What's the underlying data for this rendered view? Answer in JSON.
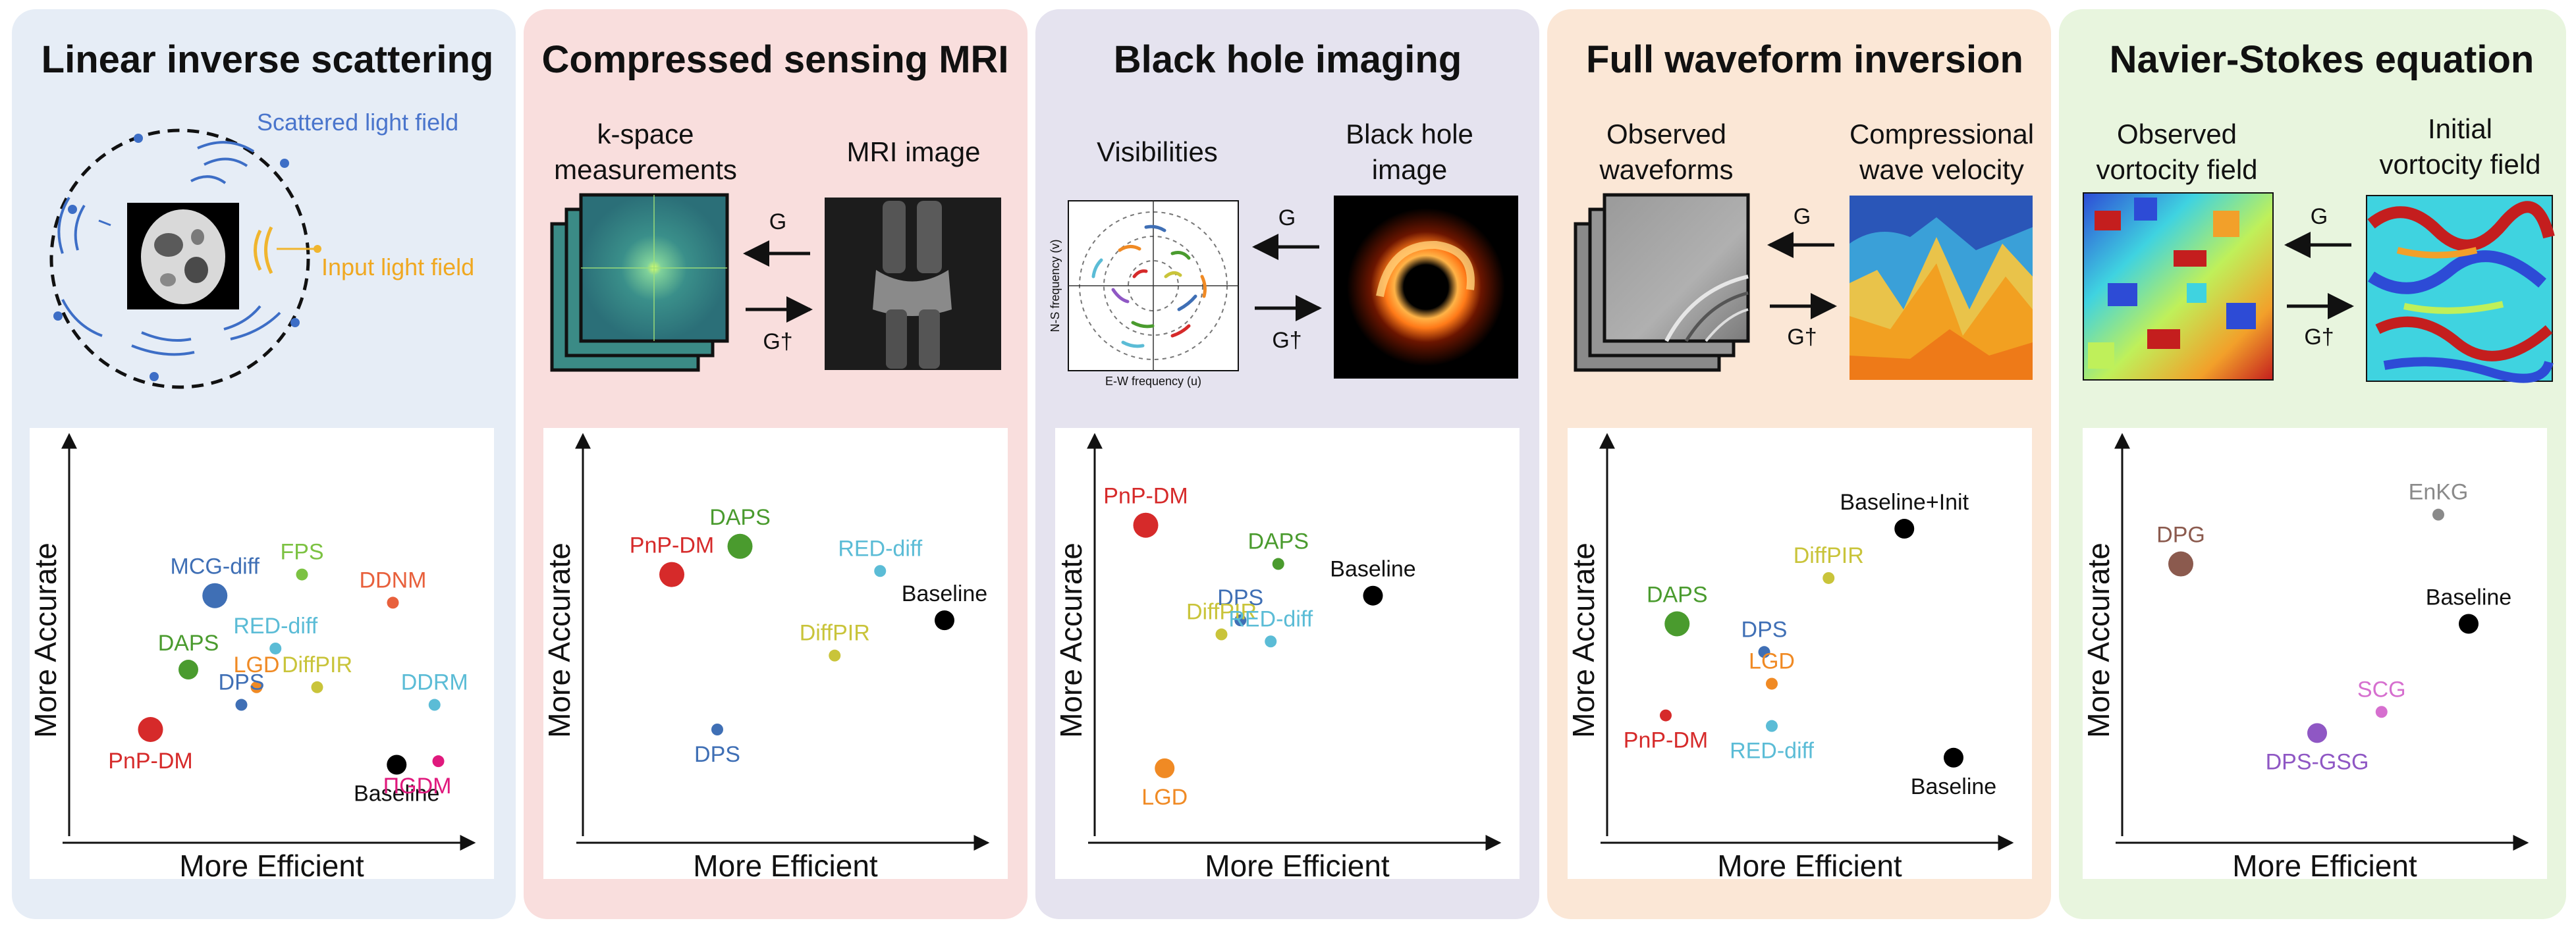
{
  "panels": [
    {
      "id": "scattering",
      "title": "Linear inverse scattering",
      "bg": "#e6edf6",
      "top_labels": [
        "Scattered light field",
        "Input light field"
      ],
      "chart_data": {
        "type": "scatter",
        "xlabel": "More Efficient",
        "ylabel": "More Accurate",
        "points": [
          {
            "name": "MCG-diff",
            "x": 0.35,
            "y": 0.58,
            "size": "large",
            "color": "#3f6fb5"
          },
          {
            "name": "FPS",
            "x": 0.58,
            "y": 0.64,
            "size": "small",
            "color": "#7cc242"
          },
          {
            "name": "DDNM",
            "x": 0.82,
            "y": 0.56,
            "size": "small",
            "color": "#e8603c"
          },
          {
            "name": "RED-diff",
            "x": 0.51,
            "y": 0.43,
            "size": "small",
            "color": "#5bbcd6"
          },
          {
            "name": "DAPS",
            "x": 0.28,
            "y": 0.37,
            "size": "medium",
            "color": "#4a9b2e"
          },
          {
            "name": "LGD",
            "x": 0.46,
            "y": 0.32,
            "size": "small",
            "color": "#f08a24"
          },
          {
            "name": "DiffPIR",
            "x": 0.62,
            "y": 0.32,
            "size": "small",
            "color": "#c9c43a"
          },
          {
            "name": "DDRM",
            "x": 0.93,
            "y": 0.27,
            "size": "small",
            "color": "#5bbcd6"
          },
          {
            "name": "DPS",
            "x": 0.42,
            "y": 0.27,
            "size": "small",
            "color": "#3f6fb5"
          },
          {
            "name": "PnP-DM",
            "x": 0.18,
            "y": 0.2,
            "size": "large",
            "color": "#d62a2a"
          },
          {
            "name": "Baseline",
            "x": 0.83,
            "y": 0.1,
            "size": "medium",
            "color": "#000000"
          },
          {
            "name": "ΠGDM",
            "x": 0.94,
            "y": 0.11,
            "size": "small",
            "color": "#e0197d"
          }
        ]
      }
    },
    {
      "id": "mri",
      "title": "Compressed sensing MRI",
      "bg": "#f9dedd",
      "left_label": "k-space\nmeasurements",
      "right_label": "MRI image",
      "forward_op": "G",
      "adjoint_op": "G†",
      "chart_data": {
        "type": "scatter",
        "xlabel": "More Efficient",
        "ylabel": "More Accurate",
        "points": [
          {
            "name": "DAPS",
            "x": 0.38,
            "y": 0.72,
            "size": "large",
            "color": "#4a9b2e"
          },
          {
            "name": "PnP-DM",
            "x": 0.2,
            "y": 0.64,
            "size": "large",
            "color": "#d62a2a"
          },
          {
            "name": "RED-diff",
            "x": 0.75,
            "y": 0.65,
            "size": "small",
            "color": "#5bbcd6"
          },
          {
            "name": "Baseline",
            "x": 0.92,
            "y": 0.51,
            "size": "medium",
            "color": "#000000"
          },
          {
            "name": "DiffPIR",
            "x": 0.63,
            "y": 0.41,
            "size": "small",
            "color": "#c9c43a"
          },
          {
            "name": "DPS",
            "x": 0.32,
            "y": 0.2,
            "size": "small",
            "color": "#3f6fb5"
          }
        ]
      }
    },
    {
      "id": "blackhole",
      "title": "Black hole imaging",
      "bg": "#e5e3ef",
      "left_label": "Visibilities",
      "right_label": "Black hole\nimage",
      "forward_op": "G",
      "adjoint_op": "G†",
      "uv_xlabel": "E-W frequency (u)",
      "uv_ylabel": "N-S frequency (v)",
      "chart_data": {
        "type": "scatter",
        "xlabel": "More Efficient",
        "ylabel": "More Accurate",
        "points": [
          {
            "name": "PnP-DM",
            "x": 0.1,
            "y": 0.78,
            "size": "large",
            "color": "#d62a2a"
          },
          {
            "name": "DAPS",
            "x": 0.45,
            "y": 0.67,
            "size": "small",
            "color": "#4a9b2e"
          },
          {
            "name": "Baseline",
            "x": 0.7,
            "y": 0.58,
            "size": "medium",
            "color": "#000000"
          },
          {
            "name": "DPS",
            "x": 0.35,
            "y": 0.51,
            "size": "small",
            "color": "#3f6fb5"
          },
          {
            "name": "DiffPIR",
            "x": 0.3,
            "y": 0.47,
            "size": "small",
            "color": "#c9c43a"
          },
          {
            "name": "RED-diff",
            "x": 0.43,
            "y": 0.45,
            "size": "small",
            "color": "#5bbcd6"
          },
          {
            "name": "LGD",
            "x": 0.15,
            "y": 0.09,
            "size": "medium",
            "color": "#f08a24"
          }
        ]
      }
    },
    {
      "id": "fwi",
      "title": "Full waveform inversion",
      "bg": "#fbe7d6",
      "left_label": "Observed\nwaveforms",
      "right_label": "Compressional\nwave velocity",
      "forward_op": "G",
      "adjoint_op": "G†",
      "chart_data": {
        "type": "scatter",
        "xlabel": "More Efficient",
        "ylabel": "More Accurate",
        "points": [
          {
            "name": "Baseline+Init",
            "x": 0.75,
            "y": 0.77,
            "size": "medium",
            "color": "#000000"
          },
          {
            "name": "DiffPIR",
            "x": 0.55,
            "y": 0.63,
            "size": "small",
            "color": "#c9c43a"
          },
          {
            "name": "DAPS",
            "x": 0.15,
            "y": 0.5,
            "size": "large",
            "color": "#4a9b2e"
          },
          {
            "name": "DPS",
            "x": 0.38,
            "y": 0.42,
            "size": "small",
            "color": "#3f6fb5"
          },
          {
            "name": "LGD",
            "x": 0.4,
            "y": 0.33,
            "size": "small",
            "color": "#f08a24"
          },
          {
            "name": "PnP-DM",
            "x": 0.12,
            "y": 0.24,
            "size": "small",
            "color": "#d62a2a"
          },
          {
            "name": "RED-diff",
            "x": 0.4,
            "y": 0.21,
            "size": "small",
            "color": "#5bbcd6"
          },
          {
            "name": "Baseline",
            "x": 0.88,
            "y": 0.12,
            "size": "medium",
            "color": "#000000"
          }
        ]
      }
    },
    {
      "id": "ns",
      "title": "Navier-Stokes equation",
      "bg": "#e8f5de",
      "left_label": "Observed\nvortocity field",
      "right_label": "Initial\nvortocity field",
      "forward_op": "G",
      "adjoint_op": "G†",
      "chart_data": {
        "type": "scatter",
        "xlabel": "More Efficient",
        "ylabel": "More Accurate",
        "points": [
          {
            "name": "EnKG",
            "x": 0.8,
            "y": 0.81,
            "size": "small",
            "color": "#8a8a8a"
          },
          {
            "name": "DPG",
            "x": 0.12,
            "y": 0.67,
            "size": "large",
            "color": "#8b5a4e"
          },
          {
            "name": "Baseline",
            "x": 0.88,
            "y": 0.5,
            "size": "medium",
            "color": "#000000"
          },
          {
            "name": "SCG",
            "x": 0.65,
            "y": 0.25,
            "size": "small",
            "color": "#d66fcf"
          },
          {
            "name": "DPS-GSG",
            "x": 0.48,
            "y": 0.19,
            "size": "medium",
            "color": "#8f57c4"
          }
        ]
      }
    }
  ]
}
